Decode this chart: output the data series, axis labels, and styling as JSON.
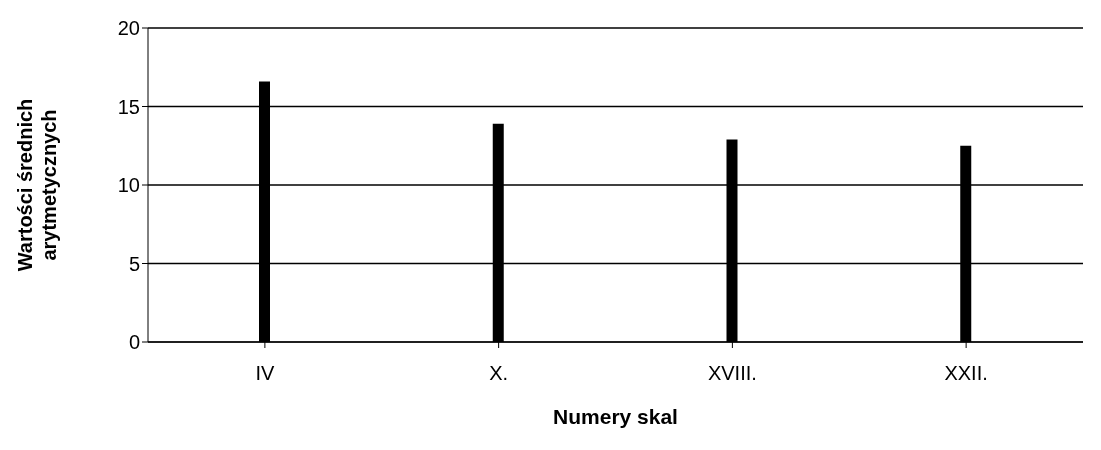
{
  "chart_data": {
    "type": "bar",
    "xlabel": "Numery skal",
    "ylabel": "Wartości średnich arytmetycznych",
    "categories": [
      "IV",
      "X.",
      "XVIII.",
      "XXII."
    ],
    "values": [
      16.6,
      13.9,
      12.9,
      12.5
    ],
    "color": "#000000",
    "ylim": [
      0,
      20
    ],
    "yticks": [
      0,
      5,
      10,
      15,
      20
    ],
    "grid": "y"
  }
}
